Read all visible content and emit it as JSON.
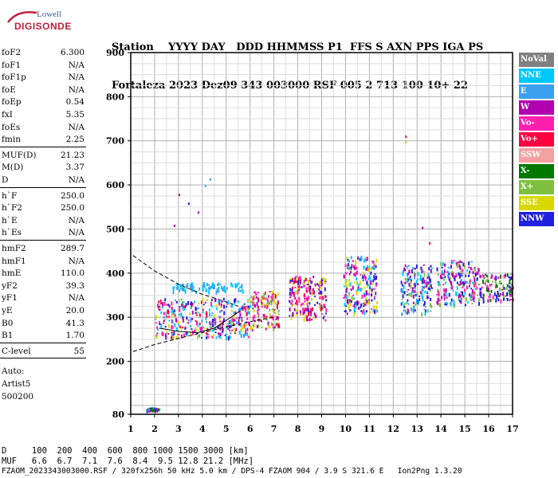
{
  "logo": {
    "top": "Lowell",
    "bottom": "DIGISONDE"
  },
  "header": {
    "line1": [
      "Station",
      "YYYY",
      "DAY",
      "DDD",
      "HHMMSS",
      "P1",
      "FFS",
      "S",
      "AXN",
      "PPS",
      "IGA",
      "PS"
    ],
    "line2": [
      "Fortaleza",
      "2023",
      "Dez09",
      "343",
      "003000",
      "RSF",
      "005",
      "2",
      "713",
      "100",
      "10+",
      "22"
    ]
  },
  "params": [
    {
      "label": "foF2",
      "value": "6.300"
    },
    {
      "label": "foF1",
      "value": "N/A"
    },
    {
      "label": "foF1p",
      "value": "N/A"
    },
    {
      "label": "foE",
      "value": "N/A"
    },
    {
      "label": "foEp",
      "value": "0.54"
    },
    {
      "label": "fxI",
      "value": "5.35"
    },
    {
      "label": "foEs",
      "value": "N/A"
    },
    {
      "label": "fmin",
      "value": "2.25"
    },
    {
      "label": "MUF(D)",
      "value": "21.23"
    },
    {
      "label": "M(D)",
      "value": "3.37"
    },
    {
      "label": "D",
      "value": "N/A"
    },
    {
      "label": "h`F",
      "value": "250.0"
    },
    {
      "label": "h`F2",
      "value": "250.0"
    },
    {
      "label": "h`E",
      "value": "N/A"
    },
    {
      "label": "h`Es",
      "value": "N/A"
    },
    {
      "label": "hmF2",
      "value": "289.7"
    },
    {
      "label": "hmF1",
      "value": "N/A"
    },
    {
      "label": "hmE",
      "value": "110.0"
    },
    {
      "label": "yF2",
      "value": "39.3"
    },
    {
      "label": "yF1",
      "value": "N/A"
    },
    {
      "label": "yE",
      "value": "20.0"
    },
    {
      "label": "B0",
      "value": "41.3"
    },
    {
      "label": "B1",
      "value": "1.70"
    },
    {
      "label": "C-level",
      "value": "55"
    }
  ],
  "auto": [
    "Auto:",
    "Artist5",
    "500200"
  ],
  "legend": [
    {
      "label": "NoVal",
      "color": "#808080"
    },
    {
      "label": "NNE",
      "color": "#00c8ff"
    },
    {
      "label": "E",
      "color": "#3ca0f0"
    },
    {
      "label": "W",
      "color": "#b000b0"
    },
    {
      "label": "Vo-",
      "color": "#ff20b0"
    },
    {
      "label": "Vo+",
      "color": "#ff0040"
    },
    {
      "label": "SSW",
      "color": "#f4a0a0"
    },
    {
      "label": "X-",
      "color": "#007800"
    },
    {
      "label": "X+",
      "color": "#80c040"
    },
    {
      "label": "SSE",
      "color": "#d8d800"
    },
    {
      "label": "NNW",
      "color": "#2020e0"
    }
  ],
  "chart_data": {
    "type": "scatter",
    "xlim": [
      1,
      17
    ],
    "ylim": [
      80,
      900
    ],
    "xticks": [
      "1",
      "2",
      "3",
      "4",
      "5",
      "6",
      "7",
      "8",
      "9",
      "10",
      "11",
      "12",
      "13",
      "14",
      "15",
      "16",
      "17"
    ],
    "yticks": [
      "900",
      "800",
      "700",
      "600",
      "500",
      "400",
      "300",
      "200",
      "80"
    ],
    "ytick_values": [
      900,
      800,
      700,
      600,
      500,
      400,
      300,
      200,
      80
    ],
    "grid": true,
    "profile_upper": [
      [
        1.1,
        440
      ],
      [
        2,
        405
      ],
      [
        3,
        375
      ],
      [
        4,
        352
      ],
      [
        5,
        335
      ],
      [
        5.5,
        325
      ]
    ],
    "profile_lower": [
      [
        1.1,
        222
      ],
      [
        2,
        238
      ],
      [
        3,
        252
      ],
      [
        4,
        265
      ],
      [
        5,
        278
      ],
      [
        6,
        290
      ],
      [
        7,
        300
      ]
    ],
    "trace_f2": [
      [
        2.2,
        275
      ],
      [
        3,
        268
      ],
      [
        3.8,
        265
      ],
      [
        4.5,
        275
      ],
      [
        5.2,
        300
      ],
      [
        5.6,
        315
      ]
    ],
    "clusters": [
      {
        "x": [
          1.6,
          2.2
        ],
        "y": [
          90,
          96
        ],
        "colors": [
          "#007800",
          "#2020e0",
          "#b000b0",
          "#3ca0f0"
        ]
      },
      {
        "x": [
          2,
          6
        ],
        "y": [
          255,
          345
        ],
        "colors": [
          "#ff0040",
          "#b000b0",
          "#ff20b0",
          "#3ca0f0",
          "#00c8ff",
          "#2020e0",
          "#d8d800"
        ]
      },
      {
        "x": [
          2.7,
          5.7
        ],
        "y": [
          360,
          380
        ],
        "colors": [
          "#00c8ff",
          "#3ca0f0"
        ]
      },
      {
        "x": [
          6,
          7.2
        ],
        "y": [
          275,
          360
        ],
        "colors": [
          "#ff0040",
          "#b000b0",
          "#ff20b0",
          "#d8d800",
          "#80c040"
        ]
      },
      {
        "x": [
          7.6,
          9.2
        ],
        "y": [
          295,
          395
        ],
        "colors": [
          "#ff0040",
          "#b000b0",
          "#ff20b0",
          "#d8d800",
          "#2020e0"
        ]
      },
      {
        "x": [
          9.9,
          11.3
        ],
        "y": [
          310,
          440
        ],
        "colors": [
          "#b000b0",
          "#d8d800",
          "#2020e0",
          "#ff20b0",
          "#00c8ff"
        ]
      },
      {
        "x": [
          12.3,
          13.6
        ],
        "y": [
          310,
          420
        ],
        "colors": [
          "#b000b0",
          "#2020e0",
          "#00c8ff",
          "#80c040",
          "#3ca0f0"
        ]
      },
      {
        "x": [
          13.8,
          15.6
        ],
        "y": [
          330,
          430
        ],
        "colors": [
          "#b000b0",
          "#2020e0",
          "#00c8ff",
          "#ff20b0",
          "#80c040"
        ]
      },
      {
        "x": [
          15.6,
          17
        ],
        "y": [
          340,
          400
        ],
        "colors": [
          "#b000b0",
          "#2020e0",
          "#80c040",
          "#007800",
          "#ff20b0"
        ]
      }
    ],
    "outliers": [
      {
        "x": 3,
        "y": 580,
        "color": "#b000b0"
      },
      {
        "x": 3.4,
        "y": 560,
        "color": "#2020e0"
      },
      {
        "x": 3.8,
        "y": 540,
        "color": "#b000b0"
      },
      {
        "x": 4.1,
        "y": 600,
        "color": "#00c8ff"
      },
      {
        "x": 4.3,
        "y": 615,
        "color": "#3ca0f0"
      },
      {
        "x": 2.8,
        "y": 510,
        "color": "#b000b0"
      },
      {
        "x": 12.5,
        "y": 712,
        "color": "#ff0040"
      },
      {
        "x": 12.5,
        "y": 700,
        "color": "#d8d800"
      },
      {
        "x": 13.2,
        "y": 505,
        "color": "#b000b0"
      },
      {
        "x": 13.5,
        "y": 470,
        "color": "#ff0040"
      }
    ]
  },
  "footer": {
    "d_line": "D     100  200  400  600  800 1000 1500 3000 [km]",
    "muf_line": "MUF   6.6  6.7  7.1  7.6  8.4  9.5 12.8 21.2 [MHz]",
    "file_line": "FZAOM_2023343003000.RSF / 320fx256h 50 kHz 5.0 km / DPS-4 FZAOM 904 / 3.9 S 321.6 E   Ion2Png 1.3.20"
  }
}
